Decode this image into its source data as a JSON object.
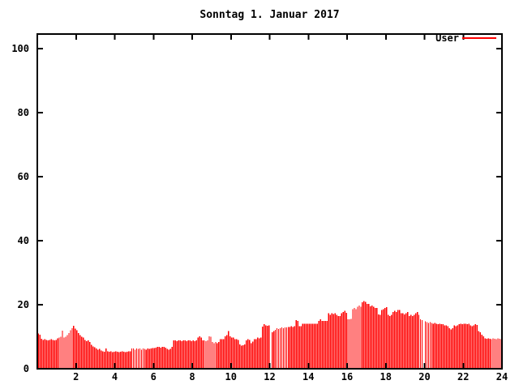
{
  "title": "Sonntag 1. Januar 2017",
  "legend": {
    "label": "User",
    "color": "#ff0000"
  },
  "axes": {
    "x_ticks": [
      2,
      4,
      6,
      8,
      10,
      12,
      14,
      16,
      18,
      20,
      22,
      24
    ],
    "y_ticks": [
      0,
      20,
      40,
      60,
      80,
      100
    ],
    "xlim": [
      0,
      24
    ],
    "ylim": [
      0,
      104.5
    ],
    "border_color": "#000000",
    "grid": "off",
    "legend_position": "top-right-inside"
  },
  "chart_data": {
    "type": "bar",
    "title": "Sonntag 1. Januar 2017",
    "series_name": "User",
    "bar_color": "#ff0000",
    "x_unit": "hour_of_day",
    "sample_interval_minutes": 5,
    "x_start": 0.0833,
    "x_step": 0.0833,
    "xlim": [
      0,
      24
    ],
    "ylim": [
      0,
      104.5
    ],
    "values": [
      11.0,
      10.6,
      9.4,
      9.0,
      9.3,
      9.0,
      8.8,
      9.0,
      9.2,
      9.0,
      8.8,
      9.0,
      9.5,
      9.7,
      10.0,
      11.9,
      9.7,
      10.0,
      10.5,
      11.2,
      12.0,
      12.7,
      13.4,
      12.5,
      12.0,
      11.2,
      10.5,
      10.0,
      9.7,
      9.0,
      8.6,
      8.8,
      8.4,
      7.5,
      7.0,
      6.7,
      6.3,
      6.0,
      6.2,
      5.7,
      5.5,
      5.3,
      6.3,
      5.5,
      5.3,
      5.5,
      5.2,
      5.3,
      5.5,
      5.3,
      5.2,
      5.3,
      5.5,
      5.3,
      5.2,
      5.3,
      5.5,
      5.4,
      6.3,
      6.3,
      6.0,
      6.3,
      6.2,
      6.3,
      6.0,
      6.3,
      6.2,
      6.0,
      6.3,
      6.2,
      6.3,
      6.5,
      6.5,
      6.6,
      6.8,
      6.8,
      6.6,
      6.8,
      6.8,
      6.6,
      6.2,
      6.0,
      6.2,
      6.8,
      8.9,
      8.9,
      8.6,
      8.9,
      8.9,
      8.6,
      8.9,
      8.9,
      8.6,
      8.9,
      8.9,
      8.6,
      8.9,
      8.6,
      8.9,
      9.7,
      10.1,
      9.7,
      8.9,
      8.9,
      8.6,
      8.9,
      10.1,
      10.0,
      8.4,
      8.0,
      8.4,
      8.0,
      8.4,
      9.3,
      9.3,
      9.3,
      10.1,
      10.5,
      11.8,
      10.1,
      9.8,
      9.8,
      9.3,
      9.3,
      9.0,
      7.6,
      7.2,
      7.4,
      7.6,
      8.9,
      9.3,
      9.0,
      8.0,
      8.5,
      9.3,
      9.3,
      9.7,
      9.5,
      9.7,
      13.2,
      13.9,
      13.5,
      13.4,
      13.5,
      0,
      11.4,
      11.8,
      12.2,
      12.6,
      12.4,
      12.6,
      12.9,
      12.7,
      12.9,
      12.9,
      13.0,
      13.0,
      13.3,
      13.1,
      13.3,
      15.2,
      15.0,
      13.3,
      13.3,
      14.1,
      14.0,
      14.1,
      14.0,
      14.1,
      14.0,
      14.1,
      14.1,
      14.0,
      14.1,
      14.9,
      15.4,
      15.0,
      14.9,
      15.0,
      14.9,
      17.3,
      16.9,
      17.3,
      17.1,
      17.3,
      16.9,
      16.4,
      16.4,
      17.3,
      17.7,
      18.1,
      17.5,
      15.4,
      15.4,
      15.6,
      18.6,
      19.0,
      18.6,
      19.4,
      19.8,
      19.4,
      20.7,
      21.1,
      20.9,
      20.3,
      20.3,
      19.5,
      19.8,
      19.4,
      19.0,
      19.0,
      17.0,
      16.9,
      18.3,
      18.6,
      19.0,
      19.2,
      16.9,
      16.5,
      16.9,
      17.7,
      18.1,
      17.7,
      18.4,
      18.4,
      17.3,
      17.3,
      17.0,
      17.3,
      17.7,
      16.4,
      16.9,
      16.4,
      16.9,
      17.3,
      17.7,
      16.9,
      15.4,
      15.2,
      0,
      14.8,
      14.5,
      14.3,
      14.5,
      14.3,
      14.1,
      14.3,
      14.1,
      13.9,
      14.1,
      13.9,
      13.9,
      13.5,
      13.5,
      13.3,
      12.6,
      12.3,
      12.6,
      13.5,
      13.3,
      13.5,
      13.9,
      14.1,
      13.9,
      14.1,
      14.1,
      13.9,
      14.1,
      13.5,
      13.3,
      13.5,
      13.9,
      13.7,
      11.8,
      11.4,
      10.6,
      10.1,
      9.5,
      9.4,
      9.5,
      9.4,
      9.3,
      9.5,
      9.4,
      9.3,
      9.5,
      9.4,
      9.3
    ]
  }
}
